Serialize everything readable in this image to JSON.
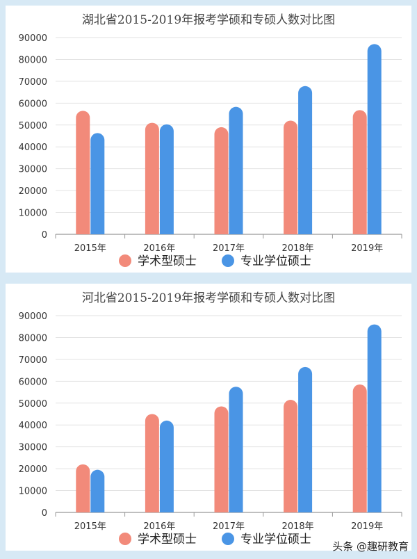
{
  "chart_data": [
    {
      "type": "bar",
      "title": "湖北省2015-2019年报考学硕和专硕人数对比图",
      "categories": [
        "2015年",
        "2016年",
        "2017年",
        "2018年",
        "2019年"
      ],
      "series": [
        {
          "name": "学术型硕士",
          "color": "#f28a7a",
          "values": [
            56500,
            51000,
            49000,
            52000,
            56800
          ]
        },
        {
          "name": "专业学位硕士",
          "color": "#4a95e5",
          "values": [
            46300,
            50300,
            58300,
            67800,
            87000
          ]
        }
      ],
      "ylim": [
        0,
        90000
      ],
      "yticks": [
        "0",
        "10000",
        "20000",
        "30000",
        "40000",
        "50000",
        "60000",
        "70000",
        "80000",
        "90000"
      ],
      "grid": true,
      "legend": "bottom"
    },
    {
      "type": "bar",
      "title": "河北省2015-2019年报考学硕和专硕人数对比图",
      "categories": [
        "2015年",
        "2016年",
        "2017年",
        "2018年",
        "2019年"
      ],
      "series": [
        {
          "name": "学术型硕士",
          "color": "#f28a7a",
          "values": [
            22000,
            45000,
            48500,
            51500,
            58500
          ]
        },
        {
          "name": "专业学位硕士",
          "color": "#4a95e5",
          "values": [
            19500,
            42000,
            57500,
            66500,
            86000
          ]
        }
      ],
      "ylim": [
        0,
        90000
      ],
      "yticks": [
        "0",
        "10000",
        "20000",
        "30000",
        "40000",
        "50000",
        "60000",
        "70000",
        "80000",
        "90000"
      ],
      "grid": true,
      "legend": "bottom"
    }
  ],
  "watermark": "头条 @趣研教育"
}
